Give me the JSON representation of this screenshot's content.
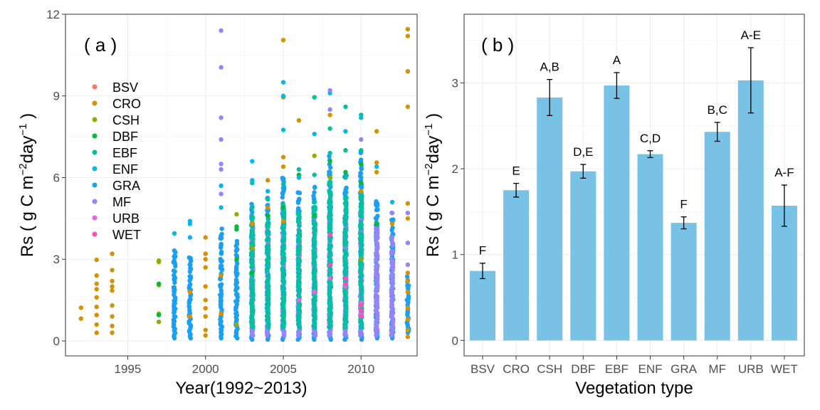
{
  "chart_data": [
    {
      "type": "scatter",
      "panel_label": "( a )",
      "xlabel": "Year(1992~2013)",
      "ylabel": "Rs ( g C m",
      "ylabel_sup1": "−2",
      "ylabel_mid": "day",
      "ylabel_sup2": "−1",
      "ylabel_end": " )",
      "xlim": [
        1991,
        2013.6
      ],
      "ylim": [
        -0.55,
        12
      ],
      "x_ticks": [
        1995,
        2000,
        2005,
        2010
      ],
      "x_tick_labels": [
        "1995",
        "2000",
        "2005",
        "2010"
      ],
      "y_ticks": [
        0,
        3,
        6,
        9,
        12
      ],
      "y_tick_labels": [
        "0",
        "3",
        "6",
        "9",
        "12"
      ],
      "grid": true,
      "legend_position": "inside-left",
      "legend": [
        {
          "name": "BSV",
          "color": "#F8766D"
        },
        {
          "name": "CRO",
          "color": "#D39200"
        },
        {
          "name": "CSH",
          "color": "#93AA00"
        },
        {
          "name": "DBF",
          "color": "#00BA38"
        },
        {
          "name": "EBF",
          "color": "#00C19F"
        },
        {
          "name": "ENF",
          "color": "#00B9E3"
        },
        {
          "name": "GRA",
          "color": "#1AA0F0"
        },
        {
          "name": "MF",
          "color": "#9583FF"
        },
        {
          "name": "URB",
          "color": "#E866E0"
        },
        {
          "name": "WET",
          "color": "#FF4FB4"
        }
      ],
      "series": [
        {
          "name": "CRO",
          "points": [
            [
              1992,
              1.22
            ],
            [
              1992,
              0.82
            ],
            [
              1993,
              2.98
            ],
            [
              1993,
              2.4
            ],
            [
              1993,
              2.1
            ],
            [
              1993,
              1.9
            ],
            [
              1993,
              1.6
            ],
            [
              1993,
              1.25
            ],
            [
              1993,
              0.95
            ],
            [
              1993,
              0.6
            ],
            [
              1993,
              0.3
            ],
            [
              1994,
              3.2
            ],
            [
              1994,
              2.6
            ],
            [
              1994,
              2.2
            ],
            [
              1994,
              2.0
            ],
            [
              1994,
              1.85
            ],
            [
              1994,
              1.3
            ],
            [
              1994,
              0.9
            ],
            [
              1994,
              0.55
            ],
            [
              1994,
              0.3
            ],
            [
              2000,
              3.8
            ],
            [
              2000,
              3.2
            ],
            [
              2000,
              3.0
            ],
            [
              2000,
              2.7
            ],
            [
              2000,
              2.0
            ],
            [
              2000,
              1.5
            ],
            [
              2000,
              1.2
            ],
            [
              2000,
              0.9
            ],
            [
              2000,
              0.4
            ],
            [
              2000,
              0.2
            ],
            [
              2005,
              11.05
            ],
            [
              2005,
              8.95
            ],
            [
              2005,
              6.75
            ],
            [
              2005,
              6.4
            ],
            [
              2005,
              4.4
            ],
            [
              2006,
              8.1
            ],
            [
              2007,
              8.95
            ],
            [
              2008,
              8.3
            ],
            [
              2009,
              7.0
            ],
            [
              2011,
              7.7
            ],
            [
              2011,
              6.55
            ],
            [
              2011,
              6.2
            ],
            [
              2013,
              11.45
            ],
            [
              2013,
              11.2
            ],
            [
              2013,
              9.9
            ],
            [
              2013,
              8.6
            ],
            [
              2013,
              5.05
            ],
            [
              2013,
              4.5
            ],
            [
              2013,
              3.6
            ],
            [
              2013,
              2.5
            ],
            [
              2013,
              2.2
            ],
            [
              2013,
              1.8
            ],
            [
              2013,
              1.2
            ],
            [
              2013,
              0.8
            ],
            [
              2013,
              0.4
            ],
            [
              2013,
              0.15
            ],
            [
              2004,
              5.9
            ],
            [
              2004,
              4.9
            ],
            [
              2003,
              4.3
            ],
            [
              2010,
              5.5
            ],
            [
              2012,
              4.3
            ],
            [
              1999,
              1.8
            ],
            [
              1999,
              0.9
            ],
            [
              2001,
              1.0
            ],
            [
              2001,
              2.4
            ]
          ]
        },
        {
          "name": "CSH",
          "points": [
            [
              1997,
              2.95
            ],
            [
              1997,
              2.9
            ],
            [
              1997,
              2.05
            ],
            [
              1997,
              1.0
            ],
            [
              1997,
              0.7
            ],
            [
              2002,
              4.65
            ],
            [
              2002,
              0.6
            ],
            [
              2003,
              3.4
            ],
            [
              2007,
              6.8
            ],
            [
              2008,
              6.0
            ],
            [
              2010,
              3.0
            ]
          ]
        },
        {
          "name": "DBF",
          "points": [
            [
              1997,
              2.1
            ],
            [
              1997,
              0.95
            ],
            [
              2002,
              4.2
            ],
            [
              2002,
              4.1
            ],
            [
              2002,
              3.0
            ],
            [
              2003,
              2.5
            ],
            [
              2004,
              4.6
            ],
            [
              2005,
              4.9
            ],
            [
              2006,
              6.1
            ],
            [
              2007,
              4.6
            ],
            [
              2008,
              6.6
            ],
            [
              2009,
              6.2
            ],
            [
              2010,
              6.5
            ],
            [
              2010,
              5.8
            ],
            [
              2011,
              4.3
            ]
          ]
        },
        {
          "name": "EBF",
          "points": [
            [
              2003,
              5.8
            ],
            [
              2004,
              5.2
            ],
            [
              2005,
              5.75
            ],
            [
              2006,
              6.3
            ],
            [
              2007,
              8.95
            ],
            [
              2008,
              7.8
            ],
            [
              2008,
              6.9
            ],
            [
              2009,
              8.6
            ],
            [
              2009,
              7.0
            ],
            [
              2010,
              8.3
            ],
            [
              2010,
              7.0
            ],
            [
              2009,
              6.0
            ],
            [
              2007,
              6.1
            ]
          ]
        },
        {
          "name": "ENF",
          "points": [
            [
              1998,
              3.95
            ],
            [
              1999,
              4.4
            ],
            [
              1999,
              4.3
            ],
            [
              1999,
              3.8
            ],
            [
              2001,
              5.7
            ],
            [
              2001,
              4.9
            ],
            [
              2003,
              6.6
            ],
            [
              2003,
              5.9
            ],
            [
              2004,
              5.5
            ],
            [
              2005,
              9.5
            ],
            [
              2005,
              9.0
            ],
            [
              2005,
              7.75
            ],
            [
              2006,
              6.0
            ],
            [
              2007,
              7.6
            ],
            [
              2008,
              9.1
            ],
            [
              2009,
              7.7
            ],
            [
              2010,
              8.2
            ],
            [
              2011,
              6.4
            ],
            [
              2012,
              5.1
            ]
          ]
        },
        {
          "name": "MF",
          "points": [
            [
              2001,
              11.4
            ],
            [
              2001,
              10.05
            ],
            [
              2001,
              8.2
            ],
            [
              2001,
              7.4
            ],
            [
              2001,
              6.5
            ],
            [
              2001,
              6.3
            ],
            [
              2001,
              5.4
            ],
            [
              2008,
              9.2
            ],
            [
              2008,
              8.5
            ],
            [
              2010,
              7.4
            ],
            [
              2012,
              4.7
            ],
            [
              2013,
              4.7
            ],
            [
              2013,
              3.6
            ],
            [
              2013,
              2.8
            ]
          ]
        },
        {
          "name": "URB",
          "points": [
            [
              2006,
              1.5
            ],
            [
              2007,
              1.8
            ],
            [
              2008,
              2.3
            ],
            [
              2009,
              2.0
            ],
            [
              2010,
              1.0
            ],
            [
              2010,
              1.4
            ]
          ]
        },
        {
          "name": "WET",
          "points": [
            [
              2008,
              3.9
            ],
            [
              2008,
              2.8
            ],
            [
              2009,
              2.3
            ],
            [
              2009,
              2.1
            ],
            [
              2010,
              1.3
            ],
            [
              2010,
              1.1
            ],
            [
              2010,
              0.9
            ]
          ]
        }
      ],
      "dense_columns": [
        {
          "x": 1998,
          "min": 0.1,
          "max": 3.5,
          "color": "#1AA0F0"
        },
        {
          "x": 1999,
          "min": 0.1,
          "max": 3.2,
          "color": "#1AA0F0"
        },
        {
          "x": 2001,
          "min": 0.1,
          "max": 4.2,
          "color": "#1AA0F0"
        },
        {
          "x": 2002,
          "min": 0.1,
          "max": 3.8,
          "color": "#1AA0F0"
        },
        {
          "x": 2003,
          "min": 0.05,
          "max": 5.3,
          "color": "#1AA0F0"
        },
        {
          "x": 2004,
          "min": 0.05,
          "max": 5.4,
          "color": "#1AA0F0"
        },
        {
          "x": 2005,
          "min": 0.05,
          "max": 6.2,
          "color": "#1AA0F0"
        },
        {
          "x": 2006,
          "min": 0.05,
          "max": 5.6,
          "color": "#1AA0F0"
        },
        {
          "x": 2007,
          "min": 0.05,
          "max": 5.8,
          "color": "#1AA0F0"
        },
        {
          "x": 2008,
          "min": 0.05,
          "max": 6.9,
          "color": "#1AA0F0"
        },
        {
          "x": 2009,
          "min": 0.05,
          "max": 6.2,
          "color": "#1AA0F0"
        },
        {
          "x": 2010,
          "min": 0.05,
          "max": 7.2,
          "color": "#1AA0F0"
        },
        {
          "x": 2011,
          "min": 0.1,
          "max": 5.4,
          "color": "#1AA0F0"
        },
        {
          "x": 2012,
          "min": 0.1,
          "max": 4.8,
          "color": "#1AA0F0"
        },
        {
          "x": 2013,
          "min": 0.3,
          "max": 2.4,
          "color": "#1AA0F0"
        },
        {
          "x": 2003,
          "min": 0.2,
          "max": 4.6,
          "color": "#9583FF"
        },
        {
          "x": 2004,
          "min": 0.2,
          "max": 4.3,
          "color": "#9583FF"
        },
        {
          "x": 2005,
          "min": 0.2,
          "max": 5.1,
          "color": "#9583FF"
        },
        {
          "x": 2006,
          "min": 0.2,
          "max": 4.6,
          "color": "#9583FF"
        },
        {
          "x": 2007,
          "min": 0.2,
          "max": 4.7,
          "color": "#9583FF"
        },
        {
          "x": 2008,
          "min": 0.2,
          "max": 5.2,
          "color": "#9583FF"
        },
        {
          "x": 2009,
          "min": 0.2,
          "max": 4.9,
          "color": "#9583FF"
        },
        {
          "x": 2010,
          "min": 0.2,
          "max": 5.3,
          "color": "#9583FF"
        },
        {
          "x": 2011,
          "min": 0.2,
          "max": 4.4,
          "color": "#9583FF"
        },
        {
          "x": 2012,
          "min": 0.2,
          "max": 3.9,
          "color": "#9583FF"
        },
        {
          "x": 2003,
          "min": 0.5,
          "max": 4.9,
          "color": "#00C19F"
        },
        {
          "x": 2004,
          "min": 0.5,
          "max": 4.6,
          "color": "#00C19F"
        },
        {
          "x": 2005,
          "min": 0.5,
          "max": 5.3,
          "color": "#00C19F"
        },
        {
          "x": 2006,
          "min": 0.5,
          "max": 5.0,
          "color": "#00C19F"
        },
        {
          "x": 2007,
          "min": 0.5,
          "max": 5.2,
          "color": "#00C19F"
        },
        {
          "x": 2008,
          "min": 0.5,
          "max": 6.2,
          "color": "#00C19F"
        },
        {
          "x": 2009,
          "min": 0.5,
          "max": 5.5,
          "color": "#00C19F"
        },
        {
          "x": 2010,
          "min": 0.5,
          "max": 5.7,
          "color": "#00C19F"
        }
      ]
    },
    {
      "type": "bar",
      "panel_label": "( b )",
      "xlabel": "Vegetation type",
      "ylabel": "Rs ( g C m",
      "ylabel_sup1": "−2",
      "ylabel_mid": "day",
      "ylabel_sup2": "−1",
      "ylabel_end": " )",
      "ylim": [
        -0.18,
        3.8
      ],
      "y_ticks": [
        0,
        1,
        2,
        3
      ],
      "y_tick_labels": [
        "0",
        "1",
        "2",
        "3"
      ],
      "grid": true,
      "bar_color": "#78C2E5",
      "categories": [
        "BSV",
        "CRO",
        "CSH",
        "DBF",
        "EBF",
        "ENF",
        "GRA",
        "MF",
        "URB",
        "WET"
      ],
      "values": [
        0.81,
        1.75,
        2.83,
        1.97,
        2.97,
        2.17,
        1.37,
        2.43,
        3.03,
        1.57
      ],
      "errors": [
        0.09,
        0.08,
        0.21,
        0.08,
        0.15,
        0.04,
        0.07,
        0.11,
        0.38,
        0.24
      ],
      "significance_labels": [
        "F",
        "E",
        "A,B",
        "D,E",
        "A",
        "C,D",
        "F",
        "B,C",
        "A-E",
        "A-F"
      ]
    }
  ]
}
